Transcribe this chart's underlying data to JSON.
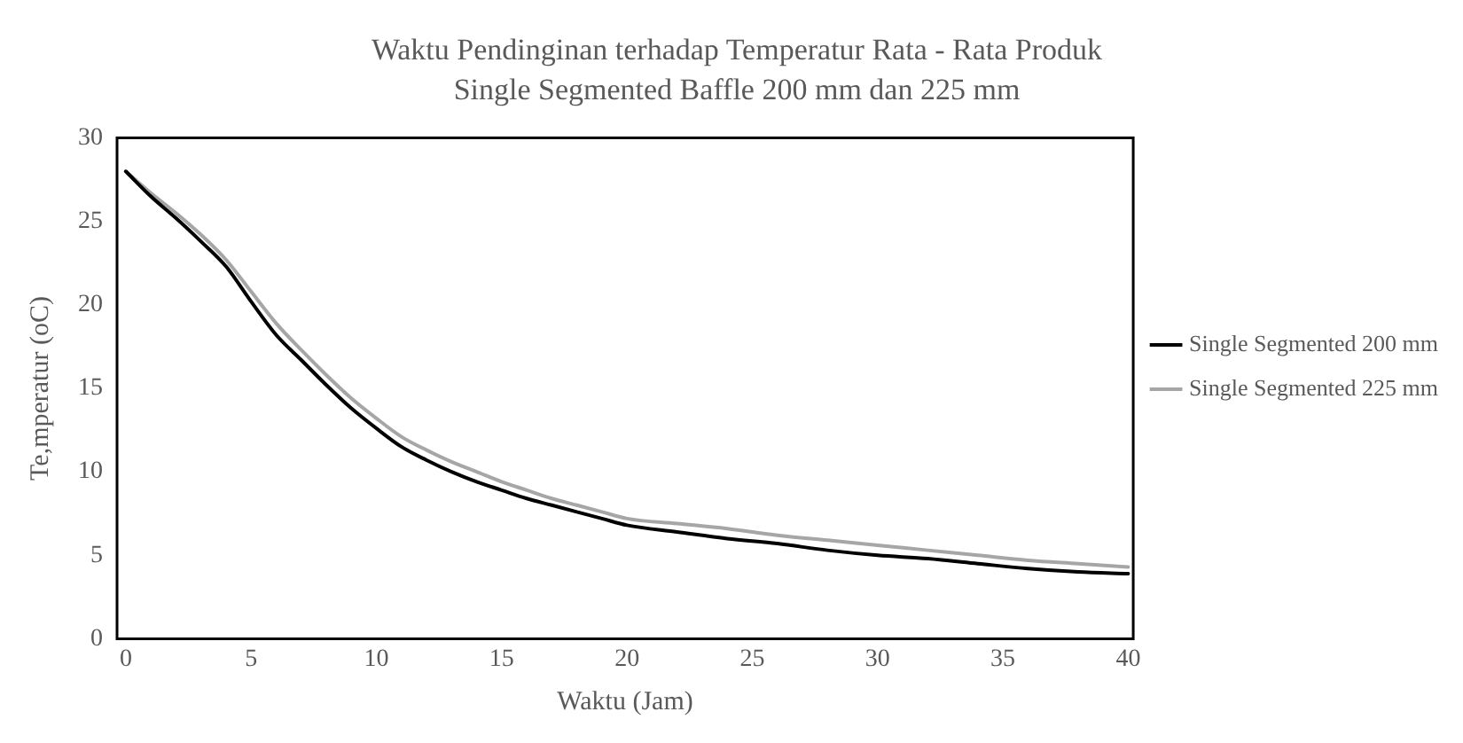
{
  "chart_data": {
    "type": "line",
    "title": "Waktu Pendinginan terhadap Temperatur Rata - Rata Produk",
    "subtitle": "Single Segmented Baffle 200 mm dan 225 mm",
    "xlabel": "Waktu (Jam)",
    "ylabel": "Te,mperatur (oC)",
    "x": [
      0,
      1,
      2,
      3,
      4,
      5,
      6,
      7,
      8,
      9,
      10,
      11,
      12,
      13,
      14,
      15,
      16,
      17,
      18,
      19,
      20,
      22,
      24,
      26,
      28,
      30,
      32,
      34,
      36,
      38,
      40
    ],
    "series": [
      {
        "name": "Single Segmented 200 mm",
        "color": "#000000",
        "values": [
          28,
          26.5,
          25.2,
          23.8,
          22.3,
          20.2,
          18.2,
          16.7,
          15.2,
          13.8,
          12.6,
          11.5,
          10.7,
          10,
          9.4,
          8.9,
          8.4,
          8,
          7.6,
          7.2,
          6.8,
          6.4,
          6,
          5.7,
          5.3,
          5,
          4.8,
          4.5,
          4.2,
          4,
          3.9
        ]
      },
      {
        "name": "Single Segmented 225 mm",
        "color": "#a6a6a6",
        "values": [
          28,
          26.7,
          25.5,
          24.2,
          22.7,
          20.8,
          18.9,
          17.3,
          15.8,
          14.4,
          13.2,
          12.1,
          11.3,
          10.6,
          10,
          9.4,
          8.9,
          8.4,
          8,
          7.6,
          7.2,
          6.9,
          6.6,
          6.2,
          5.9,
          5.6,
          5.3,
          5,
          4.7,
          4.5,
          4.3
        ]
      }
    ],
    "xlim": [
      -0.35,
      40.2
    ],
    "xticks": [
      0,
      5,
      10,
      15,
      20,
      25,
      30,
      35,
      40
    ],
    "ylim": [
      0,
      30
    ],
    "yticks": [
      0,
      5,
      10,
      15,
      20,
      25,
      30
    ],
    "grid": false,
    "legend": "right",
    "marker": "none",
    "line_style": "solid"
  }
}
